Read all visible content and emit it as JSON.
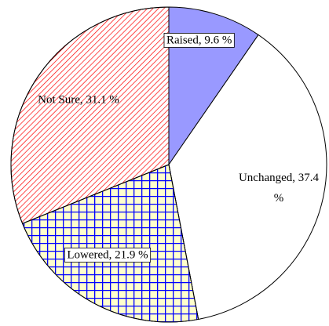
{
  "chart_data": {
    "type": "pie",
    "values": [
      9.6,
      37.4,
      21.9,
      31.1
    ],
    "value_labels": [
      "Raised, 9.6 %",
      "Unchanged, 37.4 %",
      "Lowered, 21.9 %",
      "Not Sure, 31.1 %"
    ],
    "colors": [
      "#9999ff",
      "#ffffff",
      "#ffffcc",
      "#ffffff"
    ],
    "hatch": [
      "none",
      "none",
      "grid",
      "diagonal"
    ]
  }
}
